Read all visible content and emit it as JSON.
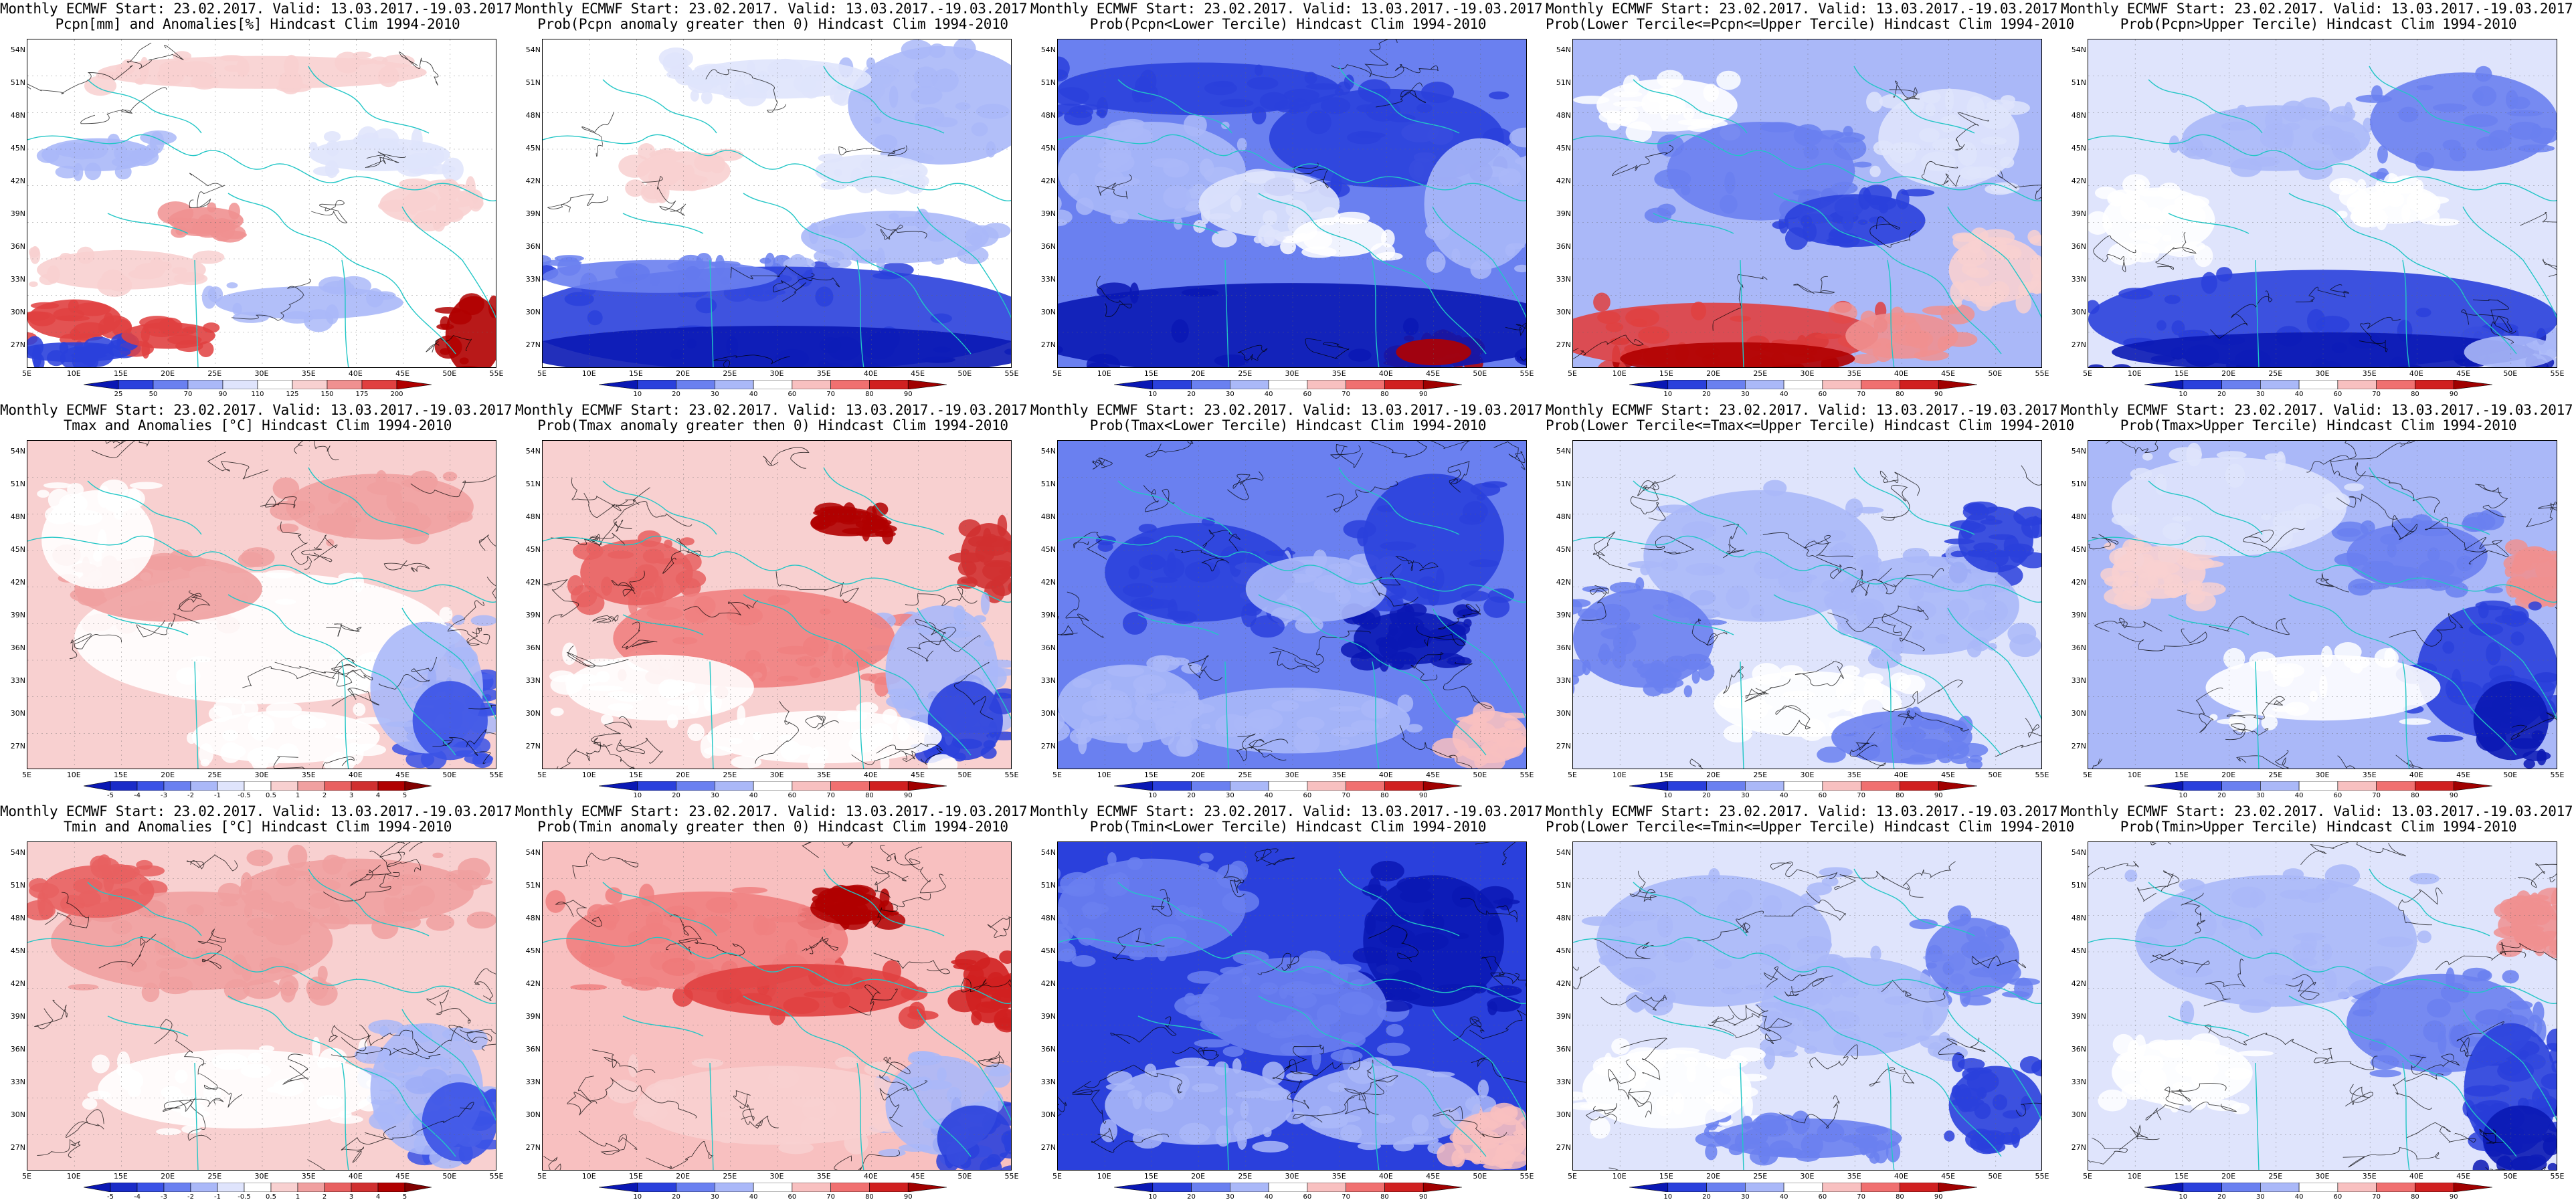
{
  "title_prefix": "Monthly ECMWF Start: 23.02.2017. Valid: 13.03.2017.-19.03.2017.",
  "lat_labels": [
    "54N",
    "51N",
    "48N",
    "45N",
    "42N",
    "39N",
    "36N",
    "33N",
    "30N",
    "27N"
  ],
  "lon_labels": [
    "5E",
    "10E",
    "15E",
    "20E",
    "25E",
    "30E",
    "35E",
    "40E",
    "45E",
    "50E",
    "55E"
  ],
  "colors": {
    "coast": "#22c6c6",
    "contour": "#000000",
    "deep_blue": "#0a18b4",
    "blue": "#3a52e6",
    "light_blue": "#b8c2f8",
    "pale": "#ffffff",
    "light_red": "#f8b6b6",
    "red": "#e83838",
    "deep_red": "#b00000"
  },
  "colorbars": {
    "pcpn_anom": {
      "labels": [
        "25",
        "50",
        "70",
        "90",
        "110",
        "125",
        "150",
        "175",
        "200"
      ],
      "colors": [
        "#0a18b4",
        "#2a40dc",
        "#6a80f0",
        "#aab8f8",
        "#dfe4fc",
        "#ffffff",
        "#f8d0d0",
        "#f09090",
        "#e04040",
        "#b00000"
      ]
    },
    "temp_anom": {
      "labels": [
        "-5",
        "-4",
        "-3",
        "-2",
        "-1",
        "-0.5",
        "0.5",
        "1",
        "2",
        "3",
        "4",
        "5"
      ],
      "colors": [
        "#0a18b4",
        "#1a2cc8",
        "#3a52e6",
        "#6a80f0",
        "#aab8f8",
        "#dfe4fc",
        "#ffffff",
        "#f8d0d0",
        "#f0a0a0",
        "#e86060",
        "#d03030",
        "#b00000",
        "#800000"
      ]
    },
    "prob": {
      "labels": [
        "10",
        "20",
        "30",
        "40",
        "60",
        "70",
        "80",
        "90"
      ],
      "colors": [
        "#0a18b4",
        "#2a40dc",
        "#6a80f0",
        "#aab8f8",
        "#ffffff",
        "#f8c0c0",
        "#f07070",
        "#d02020",
        "#a00000"
      ]
    }
  },
  "panels": [
    {
      "subtitle": "Pcpn[mm] and Anomalies[%] Hindcast Clim 1994-2010",
      "colorbar": "pcpn_anom",
      "pattern": "pcpn_anom",
      "contours": "light"
    },
    {
      "subtitle": "Prob(Pcpn anomaly greater then 0) Hindcast Clim 1994-2010",
      "colorbar": "prob",
      "pattern": "pcpn_pos",
      "contours": "light"
    },
    {
      "subtitle": "Prob(Pcpn<Lower Tercile) Hindcast Clim 1994-2010",
      "colorbar": "prob",
      "pattern": "pcpn_low",
      "contours": "light"
    },
    {
      "subtitle": "Prob(Lower Tercile<=Pcpn<=Upper Tercile) Hindcast Clim 1994-2010",
      "colorbar": "prob",
      "pattern": "pcpn_mid",
      "contours": "light"
    },
    {
      "subtitle": "Prob(Pcpn>Upper Tercile) Hindcast Clim 1994-2010",
      "colorbar": "prob",
      "pattern": "pcpn_up",
      "contours": "light"
    },
    {
      "subtitle": "Tmax and Anomalies [°C] Hindcast Clim 1994-2010",
      "colorbar": "temp_anom",
      "pattern": "tmax_anom",
      "contours": "dense"
    },
    {
      "subtitle": "Prob(Tmax anomaly greater then 0) Hindcast Clim 1994-2010",
      "colorbar": "prob",
      "pattern": "tmax_pos",
      "contours": "dense"
    },
    {
      "subtitle": "Prob(Tmax<Lower Tercile) Hindcast Clim 1994-2010",
      "colorbar": "prob",
      "pattern": "tmax_low",
      "contours": "dense"
    },
    {
      "subtitle": "Prob(Lower Tercile<=Tmax<=Upper Tercile) Hindcast Clim 1994-2010",
      "colorbar": "prob",
      "pattern": "tmax_mid",
      "contours": "dense"
    },
    {
      "subtitle": "Prob(Tmax>Upper Tercile) Hindcast Clim 1994-2010",
      "colorbar": "prob",
      "pattern": "tmax_up",
      "contours": "dense"
    },
    {
      "subtitle": "Tmin and Anomalies [°C] Hindcast Clim 1994-2010",
      "colorbar": "temp_anom",
      "pattern": "tmin_anom",
      "contours": "dense"
    },
    {
      "subtitle": "Prob(Tmin anomaly greater then 0) Hindcast Clim 1994-2010",
      "colorbar": "prob",
      "pattern": "tmin_pos",
      "contours": "dense"
    },
    {
      "subtitle": "Prob(Tmin<Lower Tercile) Hindcast Clim 1994-2010",
      "colorbar": "prob",
      "pattern": "tmin_low",
      "contours": "dense"
    },
    {
      "subtitle": "Prob(Lower Tercile<=Tmin<=Upper Tercile) Hindcast Clim 1994-2010",
      "colorbar": "prob",
      "pattern": "tmin_mid",
      "contours": "dense"
    },
    {
      "subtitle": "Prob(Tmin>Upper Tercile) Hindcast Clim 1994-2010",
      "colorbar": "prob",
      "pattern": "tmin_up",
      "contours": "dense"
    }
  ]
}
